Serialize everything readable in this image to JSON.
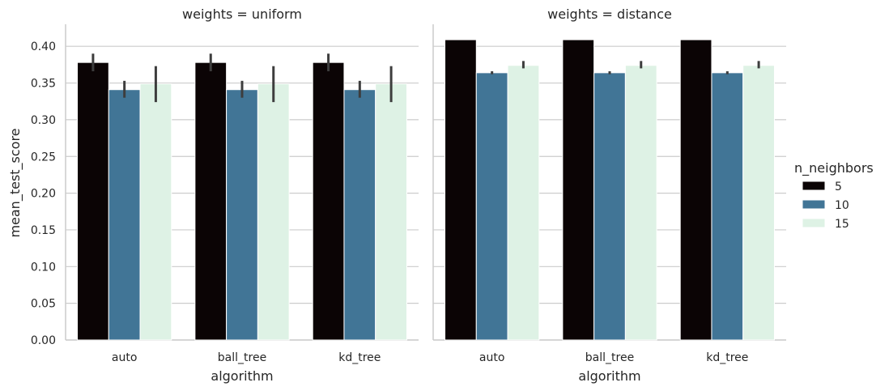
{
  "chart_data": {
    "type": "bar",
    "y_label": "mean_test_score",
    "x_label": "algorithm",
    "y_ticks": [
      "0.00",
      "0.05",
      "0.10",
      "0.15",
      "0.20",
      "0.25",
      "0.30",
      "0.35",
      "0.40"
    ],
    "ylim": [
      0,
      0.43
    ],
    "grid": "horizontal",
    "categories": [
      "auto",
      "ball_tree",
      "kd_tree"
    ],
    "legend": {
      "title": "n_neighbors",
      "placement": "right",
      "entries": [
        {
          "label": "5",
          "color": "#0b0405"
        },
        {
          "label": "10",
          "color": "#417596"
        },
        {
          "label": "15",
          "color": "#def2e5"
        }
      ]
    },
    "panels": [
      {
        "title": "weights = uniform",
        "series": [
          {
            "name": "5",
            "values": [
              0.378,
              0.378,
              0.378
            ],
            "err_low": [
              0.366,
              0.366,
              0.366
            ],
            "err_high": [
              0.39,
              0.39,
              0.39
            ]
          },
          {
            "name": "10",
            "values": [
              0.341,
              0.341,
              0.341
            ],
            "err_low": [
              0.33,
              0.33,
              0.33
            ],
            "err_high": [
              0.353,
              0.353,
              0.353
            ]
          },
          {
            "name": "15",
            "values": [
              0.349,
              0.349,
              0.349
            ],
            "err_low": [
              0.324,
              0.324,
              0.324
            ],
            "err_high": [
              0.373,
              0.373,
              0.373
            ]
          }
        ]
      },
      {
        "title": "weights = distance",
        "series": [
          {
            "name": "5",
            "values": [
              0.409,
              0.409,
              0.409
            ],
            "err_low": [
              0.409,
              0.409,
              0.409
            ],
            "err_high": [
              0.409,
              0.409,
              0.409
            ]
          },
          {
            "name": "10",
            "values": [
              0.364,
              0.364,
              0.364
            ],
            "err_low": [
              0.362,
              0.362,
              0.362
            ],
            "err_high": [
              0.366,
              0.366,
              0.366
            ]
          },
          {
            "name": "15",
            "values": [
              0.374,
              0.374,
              0.374
            ],
            "err_low": [
              0.37,
              0.37,
              0.37
            ],
            "err_high": [
              0.38,
              0.38,
              0.38
            ]
          }
        ]
      }
    ]
  }
}
